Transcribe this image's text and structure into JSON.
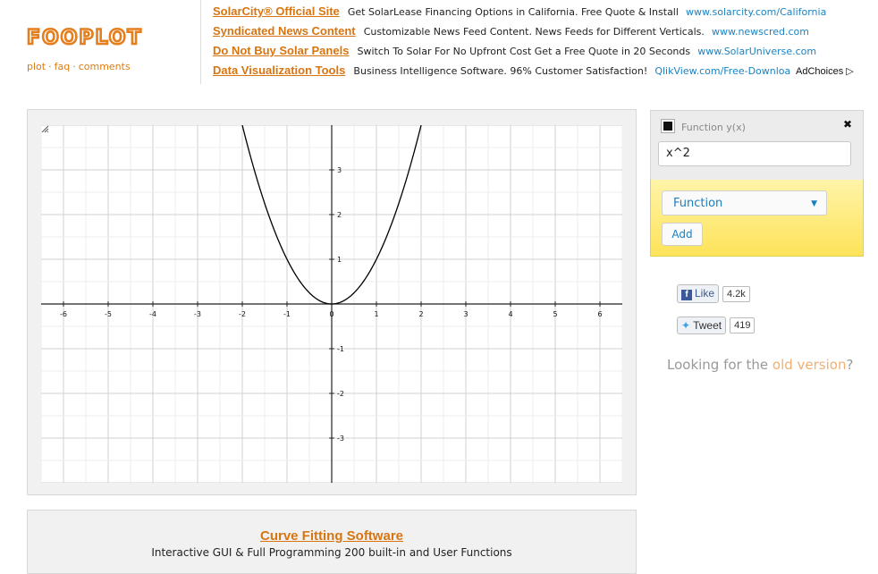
{
  "brand": {
    "logo_text": "FOOPLOT",
    "accent_color": "#e57f1e"
  },
  "nav": {
    "items": [
      "plot",
      "faq",
      "comments"
    ],
    "separator": "·"
  },
  "ads": [
    {
      "title": "SolarCity® Official Site",
      "desc": "Get SolarLease Financing Options in California. Free Quote & Install",
      "url": "www.solarcity.com/California"
    },
    {
      "title": "Syndicated News Content",
      "desc": "Customizable News Feed Content. News Feeds for Different Verticals.",
      "url": "www.newscred.com"
    },
    {
      "title": "Do Not Buy Solar Panels",
      "desc": "Switch To Solar For No Upfront Cost Get a Free Quote in 20 Seconds",
      "url": "www.SolarUniverse.com"
    },
    {
      "title": "Data Visualization Tools",
      "desc": "Business Intelligence Software. 96% Customer Satisfaction!",
      "url": "QlikView.com/Free-Downloa"
    }
  ],
  "adchoices": "AdChoices",
  "plot": {
    "xlim": [
      -6.5,
      6.5
    ],
    "ylim": [
      -4,
      4
    ],
    "x_ticks": [
      "-6",
      "-5",
      "-4",
      "-3",
      "-2",
      "-1",
      "0",
      "1",
      "2",
      "3",
      "4",
      "5",
      "6"
    ],
    "y_ticks": [
      "3",
      "2",
      "1",
      "-1",
      "-2",
      "-3"
    ],
    "function": "x^2",
    "curve_color": "#000000"
  },
  "function_panel": {
    "header": "Function y(x)",
    "close_glyph": "✖",
    "input_value": "x^2",
    "swatch_color": "#111111",
    "type_select": "Function",
    "add_label": "Add"
  },
  "social": {
    "like_label": "Like",
    "like_count": "4.2k",
    "tweet_label": "Tweet",
    "tweet_count": "419"
  },
  "old_version": {
    "prefix": "Looking for the",
    "link": "old version",
    "suffix": "?"
  },
  "bottom_ad": {
    "title": "Curve Fitting Software",
    "desc": "Interactive GUI & Full Programming 200 built-in and User Functions"
  }
}
